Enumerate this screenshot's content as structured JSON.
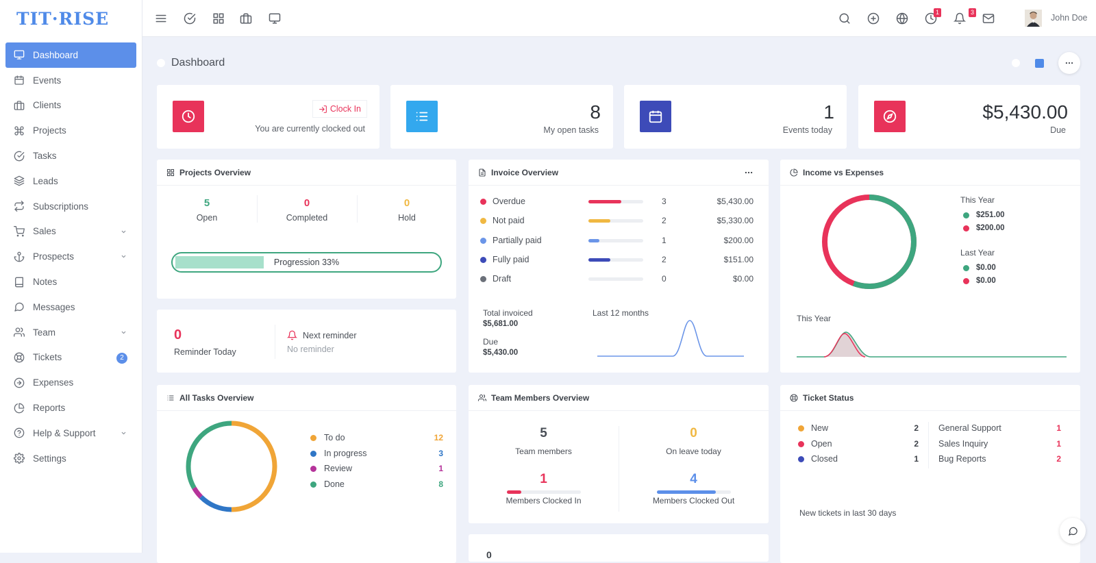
{
  "app": {
    "logo": "TIT·RISE"
  },
  "user": {
    "name": "John Doe"
  },
  "topbar": {
    "timer_badge": "1",
    "notifications_badge": "3"
  },
  "sidebar": {
    "items": [
      {
        "label": "Dashboard",
        "icon": "monitor-icon",
        "active": true
      },
      {
        "label": "Events",
        "icon": "calendar-icon"
      },
      {
        "label": "Clients",
        "icon": "briefcase-icon"
      },
      {
        "label": "Projects",
        "icon": "command-icon"
      },
      {
        "label": "Tasks",
        "icon": "check-circle-icon"
      },
      {
        "label": "Leads",
        "icon": "layers-icon"
      },
      {
        "label": "Subscriptions",
        "icon": "repeat-icon"
      },
      {
        "label": "Sales",
        "icon": "shopping-cart-icon",
        "has_submenu": true
      },
      {
        "label": "Prospects",
        "icon": "anchor-icon",
        "has_submenu": true
      },
      {
        "label": "Notes",
        "icon": "book-icon"
      },
      {
        "label": "Messages",
        "icon": "message-circle-icon"
      },
      {
        "label": "Team",
        "icon": "users-icon",
        "has_submenu": true
      },
      {
        "label": "Tickets",
        "icon": "life-buoy-icon",
        "badge": "2"
      },
      {
        "label": "Expenses",
        "icon": "arrow-right-circle-icon"
      },
      {
        "label": "Reports",
        "icon": "pie-chart-icon"
      },
      {
        "label": "Help & Support",
        "icon": "help-circle-icon",
        "has_submenu": true
      },
      {
        "label": "Settings",
        "icon": "settings-icon"
      }
    ]
  },
  "page": {
    "title": "Dashboard"
  },
  "stats": {
    "clock": {
      "button": "Clock In",
      "status": "You are currently clocked out",
      "color": "#e8335a"
    },
    "tasks": {
      "value": "8",
      "label": "My open tasks",
      "color": "#33a8ee"
    },
    "events": {
      "value": "1",
      "label": "Events today",
      "color": "#3d4bb8"
    },
    "due": {
      "value": "$5,430.00",
      "label": "Due",
      "color": "#e8335a"
    }
  },
  "projects_overview": {
    "title": "Projects Overview",
    "open": {
      "value": "5",
      "label": "Open"
    },
    "completed": {
      "value": "0",
      "label": "Completed"
    },
    "hold": {
      "value": "0",
      "label": "Hold"
    },
    "progression_label": "Progression 33%",
    "progression": 0.33
  },
  "reminders": {
    "count": "0",
    "label": "Reminder Today",
    "next_label": "Next reminder",
    "next_value": "No reminder"
  },
  "invoice_overview": {
    "title": "Invoice Overview",
    "rows": [
      {
        "label": "Overdue",
        "count": "3",
        "amount": "$5,430.00",
        "color": "#e8335a",
        "fill": 0.6
      },
      {
        "label": "Not paid",
        "count": "2",
        "amount": "$5,330.00",
        "color": "#f0b842",
        "fill": 0.4
      },
      {
        "label": "Partially paid",
        "count": "1",
        "amount": "$200.00",
        "color": "#6b95e8",
        "fill": 0.2
      },
      {
        "label": "Fully paid",
        "count": "2",
        "amount": "$151.00",
        "color": "#3d4bb8",
        "fill": 0.4
      },
      {
        "label": "Draft",
        "count": "0",
        "amount": "$0.00",
        "color": "#6b7079",
        "fill": 0
      }
    ],
    "total_label": "Total invoiced",
    "total_value": "$5,681.00",
    "due_label": "Due",
    "due_value": "$5,430.00",
    "chart_label": "Last 12 months"
  },
  "income_expenses": {
    "title": "Income vs Expenses",
    "this_year_label": "This Year",
    "this_year_income": "$251.00",
    "this_year_expenses": "$200.00",
    "last_year_label": "Last Year",
    "last_year_income": "$0.00",
    "last_year_expenses": "$0.00",
    "chart_label": "This Year",
    "income_color": "#3ea67f",
    "expense_color": "#e8335a"
  },
  "tasks_overview": {
    "title": "All Tasks Overview",
    "items": [
      {
        "label": "To do",
        "value": "12",
        "color": "#f0a537"
      },
      {
        "label": "In progress",
        "value": "3",
        "color": "#2f76c6"
      },
      {
        "label": "Review",
        "value": "1",
        "color": "#b5339a"
      },
      {
        "label": "Done",
        "value": "8",
        "color": "#3ea67f"
      }
    ]
  },
  "team_overview": {
    "title": "Team Members Overview",
    "members": {
      "value": "5",
      "label": "Team members"
    },
    "on_leave": {
      "value": "0",
      "label": "On leave today"
    },
    "clocked_in": {
      "value": "1",
      "label": "Members Clocked In",
      "fill": 0.2
    },
    "clocked_out": {
      "value": "4",
      "label": "Members Clocked Out",
      "fill": 0.8
    }
  },
  "ticket_status": {
    "title": "Ticket Status",
    "statuses": [
      {
        "label": "New",
        "value": "2",
        "color": "#f0a537"
      },
      {
        "label": "Open",
        "value": "2",
        "color": "#e8335a"
      },
      {
        "label": "Closed",
        "value": "1",
        "color": "#3d4bb8"
      }
    ],
    "types": [
      {
        "label": "General Support",
        "value": "1"
      },
      {
        "label": "Sales Inquiry",
        "value": "1"
      },
      {
        "label": "Bug Reports",
        "value": "2"
      }
    ],
    "footer": "New tickets in last 30 days"
  },
  "bottom_card": {
    "value": "0"
  }
}
